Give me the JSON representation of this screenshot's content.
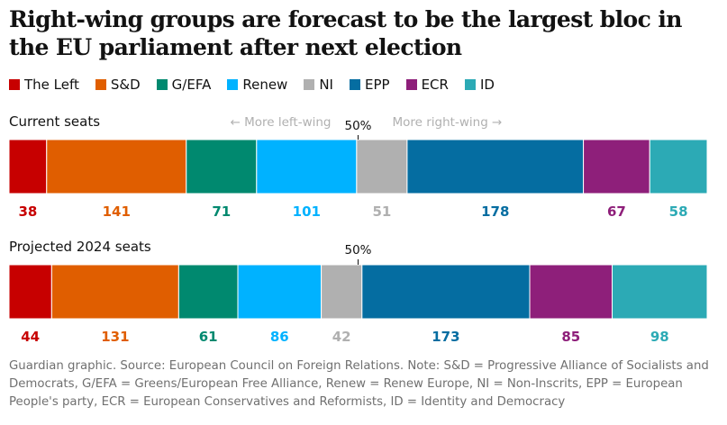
{
  "title": "Right-wing groups are forecast to be the largest bloc in the EU parliament after next election",
  "legend": [
    {
      "label": "The Left",
      "color": "#c70000"
    },
    {
      "label": "S&D",
      "color": "#e05e00"
    },
    {
      "label": "G/EFA",
      "color": "#00896f"
    },
    {
      "label": "Renew",
      "color": "#00b2ff"
    },
    {
      "label": "NI",
      "color": "#b0b0b0"
    },
    {
      "label": "EPP",
      "color": "#056da1"
    },
    {
      "label": "ECR",
      "color": "#8e1f7a"
    },
    {
      "label": "ID",
      "color": "#2caab5"
    }
  ],
  "chart_data": {
    "type": "bar",
    "orientation": "horizontal-stacked",
    "categories": [
      "The Left",
      "S&D",
      "G/EFA",
      "Renew",
      "NI",
      "EPP",
      "ECR",
      "ID"
    ],
    "colors": [
      "#c70000",
      "#e05e00",
      "#00896f",
      "#00b2ff",
      "#b0b0b0",
      "#056da1",
      "#8e1f7a",
      "#2caab5"
    ],
    "label_colors": [
      "#c70000",
      "#e05e00",
      "#00896f",
      "#00b2ff",
      "#b0b0b0",
      "#056da1",
      "#8e1f7a",
      "#2caab5"
    ],
    "series": [
      {
        "name": "Current seats",
        "values": [
          38,
          141,
          71,
          101,
          51,
          178,
          67,
          58
        ]
      },
      {
        "name": "Projected 2024 seats",
        "values": [
          44,
          131,
          61,
          86,
          42,
          173,
          85,
          98
        ]
      }
    ],
    "midpoint_label": "50%",
    "left_annotation": "← More left-wing",
    "right_annotation": "More right-wing →"
  },
  "footer": "Guardian graphic. Source: European Council on Foreign Relations. Note: S&D = Progressive Alliance of Socialists and Democrats, G/EFA = Greens/European Free Alliance, Renew = Renew Europe, NI = Non-Inscrits, EPP = European People's party, ECR = European Conservatives and Reformists, ID = Identity and Democracy"
}
